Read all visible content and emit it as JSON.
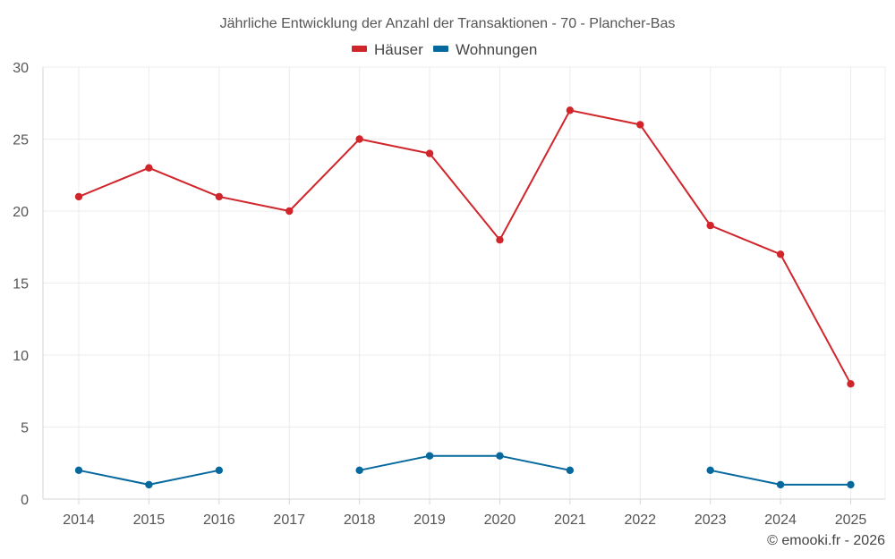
{
  "chart_data": {
    "type": "line",
    "title": "Jährliche Entwicklung der Anzahl der Transaktionen - 70 - Plancher-Bas",
    "categories": [
      "2014",
      "2015",
      "2016",
      "2017",
      "2018",
      "2019",
      "2020",
      "2021",
      "2022",
      "2023",
      "2024",
      "2025"
    ],
    "series": [
      {
        "name": "Häuser",
        "color": "#d0262b",
        "values": [
          21,
          23,
          21,
          20,
          25,
          24,
          18,
          27,
          26,
          19,
          17,
          8
        ]
      },
      {
        "name": "Wohnungen",
        "color": "#06699e",
        "values": [
          2,
          1,
          2,
          null,
          2,
          3,
          3,
          2,
          null,
          2,
          1,
          1
        ]
      }
    ],
    "ylim": [
      0,
      30
    ],
    "yticks": [
      "0",
      "5",
      "10",
      "15",
      "20",
      "25",
      "30"
    ],
    "xlabel": "",
    "ylabel": "",
    "grid": true,
    "legend_position": "top-center"
  },
  "footer": {
    "credit": "© emooki.fr - 2026"
  }
}
